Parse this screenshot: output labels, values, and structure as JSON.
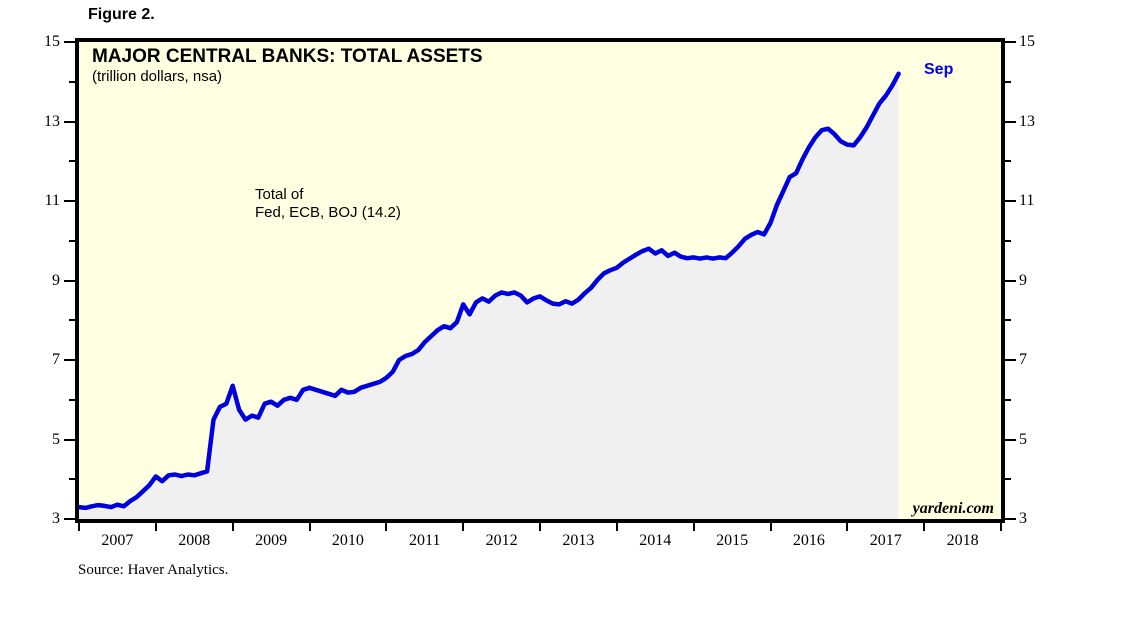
{
  "figure_label": "Figure 2.",
  "source": "Source: Haver Analytics.",
  "chart": {
    "title": "MAJOR CENTRAL BANKS: TOTAL ASSETS",
    "subtitle": "(trillion dollars, nsa)",
    "annotation": {
      "line1": "Total of",
      "line2": "Fed, ECB, BOJ (14.2)"
    },
    "end_label": "Sep",
    "watermark": "yardeni.com",
    "colors": {
      "plot_background": "#ffffe1",
      "area_fill": "#f0f0f1",
      "line": "#0000dd",
      "end_label_text": "#0000ee",
      "frame": "#000000"
    }
  },
  "chart_data": {
    "type": "line",
    "title": "MAJOR CENTRAL BANKS: TOTAL ASSETS",
    "subtitle": "(trillion dollars, nsa)",
    "xlabel": "",
    "ylabel": "",
    "xlim": [
      2007,
      2019
    ],
    "ylim": [
      3,
      15
    ],
    "grid": false,
    "legend_position": "none",
    "y_major_ticks": [
      3,
      5,
      7,
      9,
      11,
      13,
      15
    ],
    "y_minor_ticks": [
      4,
      6,
      8,
      10,
      12,
      14
    ],
    "x_tick_boundaries": [
      2007,
      2008,
      2009,
      2010,
      2011,
      2012,
      2013,
      2014,
      2015,
      2016,
      2017,
      2018,
      2019
    ],
    "x_tick_year_labels": [
      "2007",
      "2008",
      "2009",
      "2010",
      "2011",
      "2012",
      "2013",
      "2014",
      "2015",
      "2016",
      "2017",
      "2018"
    ],
    "annotations": [
      {
        "text": "Total of Fed, ECB, BOJ (14.2)"
      },
      {
        "text": "Sep"
      },
      {
        "text": "yardeni.com"
      }
    ],
    "fill_under_line": true,
    "series": [
      {
        "name": "Total of Fed, ECB, BOJ",
        "unit": "trillion dollars, nsa",
        "frequency": "monthly",
        "x_start_year": 2007,
        "x_start_month": 1,
        "last_point": {
          "label": "Sep",
          "year": 2017,
          "month": 9,
          "value": 14.2
        },
        "values": [
          3.3,
          3.28,
          3.32,
          3.35,
          3.33,
          3.3,
          3.36,
          3.32,
          3.45,
          3.55,
          3.7,
          3.85,
          4.07,
          3.95,
          4.1,
          4.12,
          4.08,
          4.12,
          4.1,
          4.15,
          4.2,
          5.5,
          5.82,
          5.9,
          6.35,
          5.75,
          5.5,
          5.6,
          5.55,
          5.9,
          5.95,
          5.85,
          6.0,
          6.05,
          6.0,
          6.25,
          6.3,
          6.25,
          6.2,
          6.15,
          6.1,
          6.25,
          6.18,
          6.2,
          6.3,
          6.35,
          6.4,
          6.45,
          6.55,
          6.7,
          7.0,
          7.1,
          7.15,
          7.25,
          7.45,
          7.6,
          7.75,
          7.85,
          7.8,
          7.95,
          8.4,
          8.15,
          8.45,
          8.55,
          8.47,
          8.62,
          8.7,
          8.66,
          8.7,
          8.62,
          8.45,
          8.55,
          8.6,
          8.5,
          8.42,
          8.4,
          8.48,
          8.42,
          8.52,
          8.68,
          8.82,
          9.02,
          9.18,
          9.26,
          9.32,
          9.45,
          9.55,
          9.65,
          9.74,
          9.8,
          9.68,
          9.76,
          9.62,
          9.7,
          9.6,
          9.56,
          9.58,
          9.55,
          9.58,
          9.55,
          9.58,
          9.56,
          9.7,
          9.86,
          10.05,
          10.15,
          10.22,
          10.16,
          10.45,
          10.9,
          11.25,
          11.6,
          11.7,
          12.05,
          12.35,
          12.6,
          12.78,
          12.82,
          12.68,
          12.5,
          12.42,
          12.4,
          12.6,
          12.85,
          13.15,
          13.45,
          13.65,
          13.9,
          14.2
        ]
      }
    ]
  }
}
